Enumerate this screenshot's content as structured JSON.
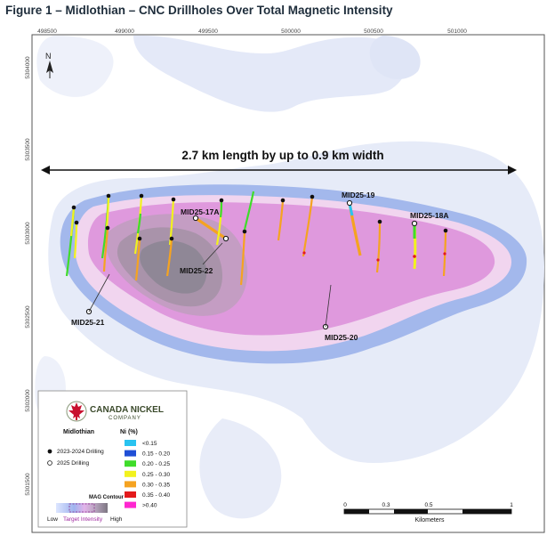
{
  "title": "Figure 1 – Midlothian – CNC Drillholes Over Total Magnetic Intensity",
  "north_label": "N",
  "easting_ticks": [
    "498500",
    "499000",
    "499500",
    "500000",
    "500500",
    "501000"
  ],
  "northing_ticks": [
    "5304000",
    "5303500",
    "5303000",
    "5302500",
    "5302000",
    "5301500"
  ],
  "dimension_text": "2.7 km length by up to 0.9 km width",
  "hole_labels": {
    "h17a": "MID25-17A",
    "h22": "MID25-22",
    "h21": "MID25-21",
    "h19": "MID25-19",
    "h18a": "MID25-18A",
    "h20": "MID25-20"
  },
  "legend": {
    "company_line1": "CANADA NICKEL",
    "company_line2": "COMPANY",
    "section_title": "Midlothian",
    "drilling_2023_2024": "2023-2024 Drilling",
    "drilling_2025": "2025 Drilling",
    "ni_title": "Ni (%)",
    "ni_classes": [
      {
        "label": "<0.15",
        "color": "#29c3f0"
      },
      {
        "label": "0.15 - 0.20",
        "color": "#1f4fd6"
      },
      {
        "label": "0.20 - 0.25",
        "color": "#3fdc2a"
      },
      {
        "label": "0.25 - 0.30",
        "color": "#f2f21e"
      },
      {
        "label": "0.30 - 0.35",
        "color": "#f5a321"
      },
      {
        "label": "0.35 - 0.40",
        "color": "#e31a1c"
      },
      {
        "label": ">0.40",
        "color": "#ff27d0"
      }
    ],
    "mag_title": "MAG Contour",
    "mag_low": "Low",
    "mag_target": "Target Intensity",
    "mag_high": "High"
  },
  "scale_bar": {
    "ticks": [
      "0",
      "0.3",
      "0.5",
      "1"
    ],
    "unit": "Kilometers"
  },
  "colors": {
    "mag_outer": "#dde3f6",
    "mag_blue": "#9fb5ea",
    "mag_pink_light": "#f2cdee",
    "mag_pink": "#dd92dc",
    "mag_grey": "#a48aa6"
  }
}
